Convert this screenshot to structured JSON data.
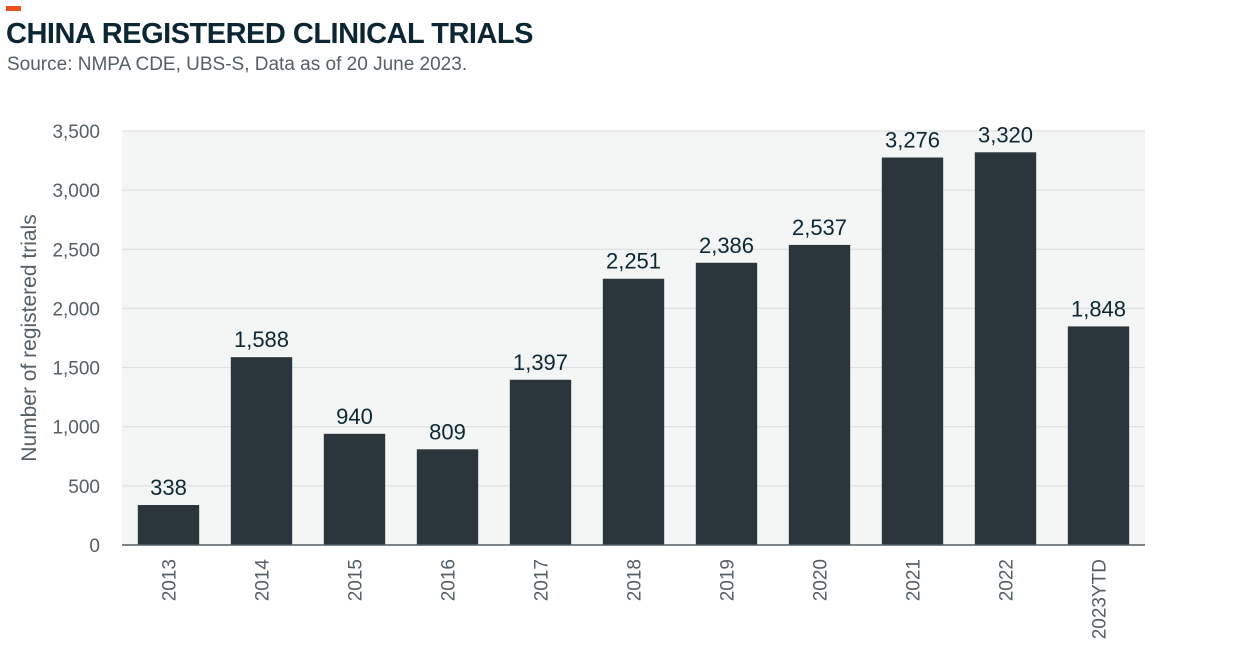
{
  "header": {
    "title": "CHINA REGISTERED CLINICAL TRIALS",
    "subtitle": "Source: NMPA CDE, UBS-S, Data as of 20 June 2023."
  },
  "colors": {
    "accent": "#e8501e",
    "bar": "#2b363c",
    "plot_background": "#f4f6f5",
    "gridline": "#d9dcdb",
    "axis": "#555f66"
  },
  "chart_data": {
    "type": "bar",
    "title": "CHINA REGISTERED CLINICAL TRIALS",
    "subtitle": "Source: NMPA CDE, UBS-S, Data as of 20 June 2023.",
    "xlabel": "",
    "ylabel": "Number of registered trials",
    "categories": [
      "2013",
      "2014",
      "2015",
      "2016",
      "2017",
      "2018",
      "2019",
      "2020",
      "2021",
      "2022",
      "2023YTD"
    ],
    "values": [
      338,
      1588,
      940,
      809,
      1397,
      2251,
      2386,
      2537,
      3276,
      3320,
      1848
    ],
    "data_labels": [
      "338",
      "1,588",
      "940",
      "809",
      "1,397",
      "2,251",
      "2,386",
      "2,537",
      "3,276",
      "3,320",
      "1,848"
    ],
    "ylim": [
      0,
      3500
    ],
    "yticks": [
      0,
      500,
      1000,
      1500,
      2000,
      2500,
      3000,
      3500
    ],
    "ytick_labels": [
      "0",
      "500",
      "1,000",
      "1,500",
      "2,000",
      "2,500",
      "3,000",
      "3,500"
    ],
    "grid": true,
    "legend": "none"
  }
}
